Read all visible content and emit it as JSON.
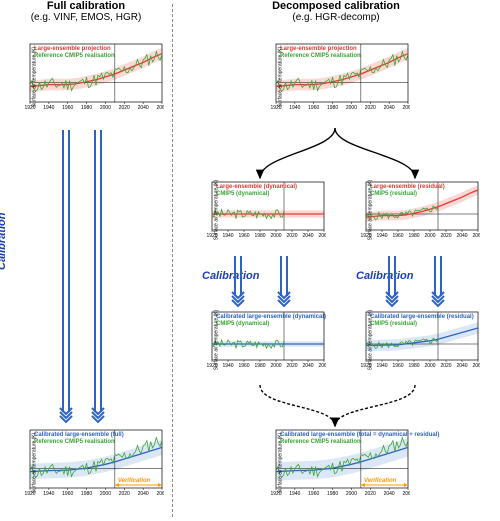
{
  "colors": {
    "red": "#e53935",
    "red_band": "#f6b8b0",
    "green": "#3aa536",
    "blue": "#2e63c4",
    "blue_band": "#bfd3ef",
    "orange": "#ff9800",
    "axis": "#000000",
    "bg": "#ffffff"
  },
  "left": {
    "title": "Full calibration",
    "subtitle": "(e.g. VINF, EMOS, HGR)"
  },
  "right": {
    "title": "Decomposed calibration",
    "subtitle": "(e.g. HGR-decomp)"
  },
  "fontsizes": {
    "title": 11,
    "subtitle": 10,
    "legend": 6,
    "ticks": 5,
    "cal": 11
  },
  "axes": {
    "xlim": [
      1920,
      2060
    ],
    "ylim": [
      -2,
      4
    ],
    "xticks": [
      1920,
      1940,
      1960,
      1980,
      2000,
      2020,
      2040,
      2060
    ],
    "ylabel": "Surface air temperature (K)",
    "vline_x": 2010,
    "hline_y": 0
  },
  "chart_geom": {
    "big_w": 150,
    "big_h": 70,
    "small_w": 130,
    "small_h": 60
  },
  "legends": {
    "top_full": [
      {
        "text": "Large-ensemble projection",
        "color": "#e53935"
      },
      {
        "text": "Reference CMIP5 realisation",
        "color": "#3aa536"
      }
    ],
    "dyn_split": [
      {
        "text": "Large-ensemble (dynamical)",
        "color": "#e53935"
      },
      {
        "text": "CMIP5 (dynamical)",
        "color": "#3aa536"
      }
    ],
    "res_split": [
      {
        "text": "Large-ensemble (residual)",
        "color": "#e53935"
      },
      {
        "text": "CMIP5 (residual)",
        "color": "#3aa536"
      }
    ],
    "dyn_cal": [
      {
        "text": "Calibrated large-ensemble (dynamical)",
        "color": "#2e63c4"
      },
      {
        "text": "CMIP5 (dynamical)",
        "color": "#3aa536"
      }
    ],
    "res_cal": [
      {
        "text": "Calibrated large-ensemble (residual)",
        "color": "#2e63c4"
      },
      {
        "text": "CMIP5 (residual)",
        "color": "#3aa536"
      }
    ],
    "final_full": [
      {
        "text": "Calibrated large-ensemble (full)",
        "color": "#2e63c4"
      },
      {
        "text": "Reference CMIP5 realisation",
        "color": "#3aa536"
      }
    ],
    "final_decomp": [
      {
        "text": "Calibrated large-ensemble (total = dynamical + residual)",
        "color": "#2e63c4"
      },
      {
        "text": "Reference CMIP5 realisation",
        "color": "#3aa536"
      }
    ]
  },
  "labels": {
    "calibration": "Calibration",
    "verification": "Verification"
  },
  "series": {
    "proj_mean": [
      [
        1920,
        -0.4
      ],
      [
        1930,
        -0.3
      ],
      [
        1940,
        -0.2
      ],
      [
        1950,
        -0.2
      ],
      [
        1960,
        -0.2
      ],
      [
        1970,
        -0.1
      ],
      [
        1980,
        0.1
      ],
      [
        1990,
        0.3
      ],
      [
        2000,
        0.6
      ],
      [
        2010,
        0.9
      ],
      [
        2020,
        1.3
      ],
      [
        2030,
        1.7
      ],
      [
        2040,
        2.1
      ],
      [
        2050,
        2.6
      ],
      [
        2060,
        3.0
      ]
    ],
    "proj_band_half": 0.6,
    "ref_noise_amp": 0.7,
    "dyn_mean": [
      [
        1920,
        0
      ],
      [
        1960,
        0
      ],
      [
        2000,
        0
      ],
      [
        2060,
        0
      ]
    ],
    "dyn_band_half": 0.45,
    "res_mean_ref": "proj_mean",
    "cal_full_mean": [
      [
        1920,
        -0.3
      ],
      [
        1940,
        -0.2
      ],
      [
        1960,
        -0.15
      ],
      [
        1980,
        0.05
      ],
      [
        2000,
        0.45
      ],
      [
        2010,
        0.7
      ],
      [
        2020,
        1.0
      ],
      [
        2040,
        1.6
      ],
      [
        2060,
        2.2
      ]
    ],
    "cal_full_band_half": 0.8,
    "cal_dyn_mean": [
      [
        1920,
        0
      ],
      [
        2060,
        0
      ]
    ],
    "cal_dyn_band_half": 0.35,
    "cal_res_mean": [
      [
        1920,
        -0.2
      ],
      [
        1960,
        -0.1
      ],
      [
        2000,
        0.4
      ],
      [
        2010,
        0.6
      ],
      [
        2060,
        2.0
      ]
    ],
    "cal_res_band_half": 0.7
  }
}
